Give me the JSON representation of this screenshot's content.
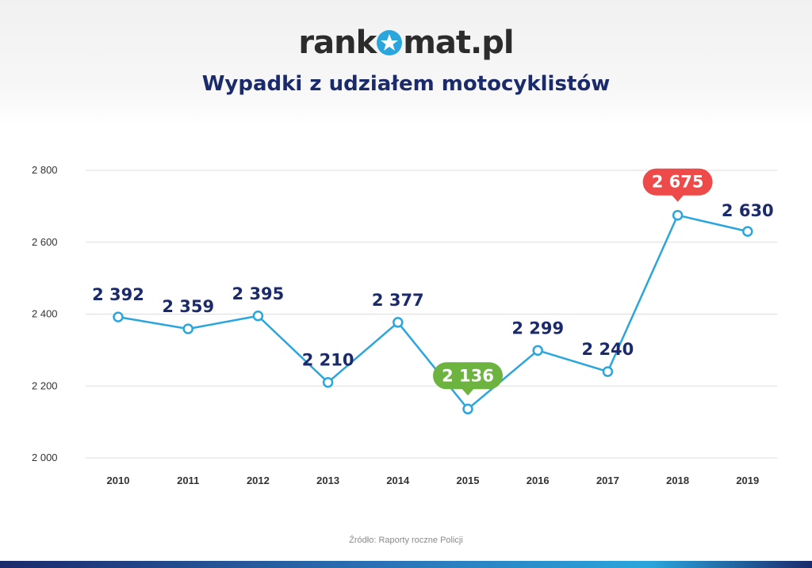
{
  "header": {
    "logo_prefix": "rank",
    "logo_suffix": "mat.pl",
    "title": "Wypadki z udziałem motocyklistów"
  },
  "source": "Źródło: Raporty roczne Policji",
  "colors": {
    "line": "#2aa6dd",
    "point_label": "#1b2a6b",
    "max_badge": "#ef4a4a",
    "min_badge": "#6cb33f",
    "axis_text": "#333333",
    "grid": "#dddddd"
  },
  "chart_data": {
    "type": "line",
    "title": "Wypadki z udziałem motocyklistów",
    "xlabel": "",
    "ylabel": "",
    "categories": [
      "2010",
      "2011",
      "2012",
      "2013",
      "2014",
      "2015",
      "2016",
      "2017",
      "2018",
      "2019"
    ],
    "values": [
      2392,
      2359,
      2395,
      2210,
      2377,
      2136,
      2299,
      2240,
      2675,
      2630
    ],
    "value_labels": [
      "2 392",
      "2 359",
      "2 395",
      "2 210",
      "2 377",
      "2 136",
      "2 299",
      "2 240",
      "2 675",
      "2 630"
    ],
    "ylim": [
      2000,
      2800
    ],
    "yticks": [
      2000,
      2200,
      2400,
      2600,
      2800
    ],
    "ytick_labels": [
      "2 000",
      "2 200",
      "2 400",
      "2 600",
      "2 800"
    ],
    "grid": true,
    "legend": "none",
    "highlight_max_index": 8,
    "highlight_min_index": 5
  }
}
